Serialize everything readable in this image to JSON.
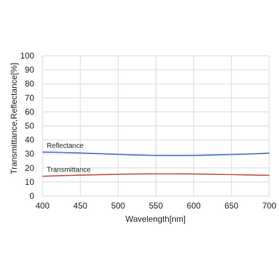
{
  "chart_data": {
    "type": "line",
    "title": "",
    "xlabel": "Wavelength[nm]",
    "ylabel": "Transmittance,Reflectance[%]",
    "xlim": [
      400,
      700
    ],
    "ylim": [
      0,
      100
    ],
    "xticks": [
      400,
      450,
      500,
      550,
      600,
      650,
      700
    ],
    "yticks": [
      0,
      10,
      20,
      30,
      40,
      50,
      60,
      70,
      80,
      90,
      100
    ],
    "grid": true,
    "legend": "none",
    "series": [
      {
        "name": "Reflectance",
        "color": "#4472c4",
        "x": [
          400,
          425,
          450,
          475,
          500,
          525,
          550,
          575,
          600,
          625,
          650,
          675,
          700
        ],
        "y": [
          31.3,
          31.1,
          30.7,
          30.2,
          29.7,
          29.2,
          28.9,
          28.8,
          28.9,
          29.2,
          29.6,
          30.0,
          30.6
        ]
      },
      {
        "name": "Transmittance",
        "color": "#c0504d",
        "x": [
          400,
          425,
          450,
          475,
          500,
          525,
          550,
          575,
          600,
          625,
          650,
          675,
          700
        ],
        "y": [
          14.1,
          14.5,
          14.9,
          15.2,
          15.5,
          15.7,
          15.8,
          15.8,
          15.7,
          15.5,
          15.3,
          15.0,
          14.7
        ]
      }
    ],
    "annotations": [
      {
        "text": "Reflectance",
        "series": "Reflectance"
      },
      {
        "text": "Transmittance",
        "series": "Transmittance"
      }
    ]
  }
}
